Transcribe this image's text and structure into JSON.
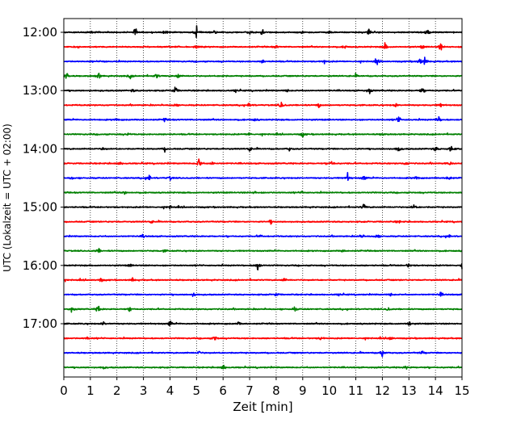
{
  "chart_data": {
    "type": "line",
    "title": "",
    "xlabel": "Zeit  [min]",
    "ylabel": "UTC (Lokalzeit = UTC + 02:00)",
    "xlim": [
      0,
      15
    ],
    "x_ticks": [
      "0",
      "1",
      "2",
      "3",
      "4",
      "5",
      "6",
      "7",
      "8",
      "9",
      "10",
      "11",
      "12",
      "13",
      "14",
      "15"
    ],
    "x_tick_values": [
      0,
      1,
      2,
      3,
      4,
      5,
      6,
      7,
      8,
      9,
      10,
      11,
      12,
      13,
      14,
      15
    ],
    "y_ticks": [
      "12:00",
      "13:00",
      "14:00",
      "15:00",
      "16:00",
      "17:00"
    ],
    "grid": "vertical dotted at each minute",
    "trace_interval_minutes": 15,
    "start_time": "12:00",
    "end_time": "17:45",
    "color_cycle": [
      "#000000",
      "#ff0000",
      "#0000ff",
      "#008000"
    ],
    "traces": [
      {
        "start": "12:00",
        "color": "#000000",
        "events": [
          [
            1.0,
            0.3
          ],
          [
            2.7,
            0.9
          ],
          [
            3.8,
            0.5
          ],
          [
            5.0,
            1.2
          ],
          [
            5.7,
            0.5
          ],
          [
            7.0,
            0.4
          ],
          [
            7.5,
            0.8
          ],
          [
            9.0,
            0.4
          ],
          [
            10.0,
            0.4
          ],
          [
            11.5,
            0.9
          ],
          [
            13.7,
            0.8
          ]
        ]
      },
      {
        "start": "12:15",
        "color": "#ff0000",
        "events": [
          [
            0.5,
            0.3
          ],
          [
            5.0,
            0.4
          ],
          [
            8.0,
            0.4
          ],
          [
            10.6,
            0.4
          ],
          [
            12.1,
            0.9
          ],
          [
            13.5,
            0.4
          ],
          [
            14.2,
            0.8
          ]
        ]
      },
      {
        "start": "12:30",
        "color": "#0000ff",
        "events": [
          [
            1.5,
            0.3
          ],
          [
            7.5,
            0.4
          ],
          [
            9.8,
            0.4
          ],
          [
            11.8,
            0.6
          ],
          [
            13.4,
            0.8
          ],
          [
            13.6,
            0.9
          ]
        ]
      },
      {
        "start": "12:45",
        "color": "#008000",
        "events": [
          [
            0.1,
            1.0
          ],
          [
            1.3,
            0.9
          ],
          [
            2.5,
            0.5
          ],
          [
            3.5,
            0.6
          ],
          [
            4.3,
            0.6
          ],
          [
            6.0,
            0.3
          ],
          [
            11.0,
            0.3
          ]
        ]
      },
      {
        "start": "13:00",
        "color": "#000000",
        "events": [
          [
            2.6,
            0.4
          ],
          [
            4.2,
            0.9
          ],
          [
            6.5,
            0.5
          ],
          [
            8.4,
            0.4
          ],
          [
            11.5,
            0.7
          ],
          [
            13.5,
            0.8
          ]
        ]
      },
      {
        "start": "13:15",
        "color": "#ff0000",
        "events": [
          [
            4.2,
            0.4
          ],
          [
            7.0,
            0.7
          ],
          [
            8.2,
            1.0
          ],
          [
            9.6,
            0.5
          ],
          [
            12.5,
            0.4
          ],
          [
            14.2,
            0.4
          ]
        ]
      },
      {
        "start": "13:30",
        "color": "#0000ff",
        "events": [
          [
            2.0,
            0.4
          ],
          [
            3.8,
            0.4
          ],
          [
            7.2,
            0.3
          ],
          [
            12.6,
            0.9
          ],
          [
            14.1,
            1.0
          ]
        ]
      },
      {
        "start": "13:45",
        "color": "#008000",
        "events": [
          [
            2.4,
            0.3
          ],
          [
            7.0,
            0.5
          ],
          [
            9.0,
            0.7
          ],
          [
            12.0,
            0.3
          ]
        ]
      },
      {
        "start": "14:00",
        "color": "#000000",
        "events": [
          [
            1.5,
            0.4
          ],
          [
            3.8,
            0.4
          ],
          [
            7.0,
            0.5
          ],
          [
            8.5,
            0.4
          ],
          [
            12.6,
            0.8
          ],
          [
            14.0,
            0.6
          ],
          [
            14.6,
            1.0
          ]
        ]
      },
      {
        "start": "14:15",
        "color": "#ff0000",
        "events": [
          [
            2.1,
            0.4
          ],
          [
            5.1,
            1.3
          ],
          [
            5.6,
            0.4
          ],
          [
            10.1,
            0.8
          ],
          [
            12.9,
            0.4
          ],
          [
            14.5,
            0.4
          ]
        ]
      },
      {
        "start": "14:30",
        "color": "#0000ff",
        "events": [
          [
            0.3,
            0.3
          ],
          [
            3.2,
            1.0
          ],
          [
            4.0,
            0.4
          ],
          [
            10.7,
            0.9
          ],
          [
            11.3,
            0.7
          ],
          [
            13.3,
            0.6
          ],
          [
            14.5,
            1.0
          ]
        ]
      },
      {
        "start": "14:45",
        "color": "#008000",
        "events": [
          [
            2.3,
            0.3
          ],
          [
            7.2,
            0.3
          ],
          [
            9.0,
            0.3
          ]
        ]
      },
      {
        "start": "15:00",
        "color": "#000000",
        "events": [
          [
            4.0,
            0.3
          ],
          [
            11.3,
            0.8
          ],
          [
            13.2,
            0.8
          ]
        ]
      },
      {
        "start": "15:15",
        "color": "#ff0000",
        "events": [
          [
            3.3,
            0.3
          ],
          [
            7.8,
            0.4
          ],
          [
            12.6,
            0.4
          ]
        ]
      },
      {
        "start": "15:30",
        "color": "#0000ff",
        "events": [
          [
            3.0,
            0.3
          ],
          [
            7.4,
            0.3
          ],
          [
            11.2,
            0.6
          ],
          [
            11.8,
            0.6
          ],
          [
            14.5,
            0.5
          ]
        ]
      },
      {
        "start": "15:45",
        "color": "#008000",
        "events": [
          [
            1.3,
            0.6
          ],
          [
            3.8,
            0.3
          ],
          [
            10.5,
            0.3
          ]
        ]
      },
      {
        "start": "16:00",
        "color": "#000000",
        "events": [
          [
            2.5,
            0.3
          ],
          [
            7.3,
            1.4
          ],
          [
            13.0,
            0.5
          ],
          [
            15.0,
            0.8
          ]
        ]
      },
      {
        "start": "16:15",
        "color": "#ff0000",
        "events": [
          [
            1.4,
            0.5
          ],
          [
            2.6,
            0.4
          ],
          [
            8.3,
            0.4
          ]
        ]
      },
      {
        "start": "16:30",
        "color": "#0000ff",
        "events": [
          [
            4.9,
            0.5
          ],
          [
            8.0,
            0.4
          ],
          [
            10.4,
            0.4
          ],
          [
            12.3,
            0.4
          ],
          [
            14.2,
            0.4
          ]
        ]
      },
      {
        "start": "16:45",
        "color": "#008000",
        "events": [
          [
            0.3,
            0.6
          ],
          [
            1.3,
            0.9
          ],
          [
            2.5,
            0.6
          ],
          [
            8.7,
            0.4
          ],
          [
            12.2,
            0.4
          ]
        ]
      },
      {
        "start": "17:00",
        "color": "#000000",
        "events": [
          [
            1.5,
            0.4
          ],
          [
            4.0,
            0.7
          ],
          [
            6.6,
            0.4
          ],
          [
            13.0,
            0.8
          ]
        ]
      },
      {
        "start": "17:15",
        "color": "#ff0000",
        "events": [
          [
            0.9,
            0.4
          ],
          [
            5.7,
            0.7
          ],
          [
            9.7,
            0.4
          ],
          [
            12.3,
            0.6
          ]
        ]
      },
      {
        "start": "17:30",
        "color": "#0000ff",
        "events": [
          [
            5.1,
            0.4
          ],
          [
            12.0,
            0.9
          ],
          [
            13.5,
            0.4
          ]
        ]
      },
      {
        "start": "17:45",
        "color": "#008000",
        "events": [
          [
            1.5,
            0.3
          ],
          [
            6.0,
            0.7
          ],
          [
            12.9,
            0.4
          ]
        ]
      }
    ]
  }
}
